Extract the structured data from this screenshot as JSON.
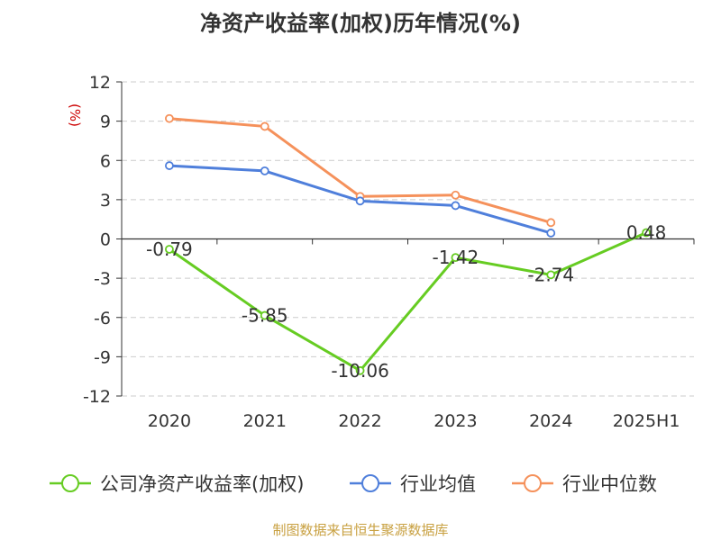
{
  "chart_data": {
    "type": "line",
    "title": "净资产收益率(加权)历年情况(%)",
    "ylabel": "(%)",
    "categories": [
      "2020",
      "2021",
      "2022",
      "2023",
      "2024",
      "2025H1"
    ],
    "ylim": [
      -12,
      12
    ],
    "yticks": [
      12,
      9,
      6,
      3,
      0,
      -3,
      -6,
      -9,
      -12
    ],
    "grid": true,
    "legend_position": "bottom",
    "series": [
      {
        "name": "公司净资产收益率(加权)",
        "color": "#66cc22",
        "values": [
          -0.79,
          -5.85,
          -10.06,
          -1.42,
          -2.74,
          0.48
        ],
        "labels": [
          "-0.79",
          "-5.85",
          "-10.06",
          "-1.42",
          "-2.74",
          "0.48"
        ]
      },
      {
        "name": "行业均值",
        "color": "#4f7fdb",
        "values": [
          5.6,
          5.2,
          2.9,
          2.55,
          0.45,
          null
        ]
      },
      {
        "name": "行业中位数",
        "color": "#f5915b",
        "values": [
          9.2,
          8.6,
          3.25,
          3.35,
          1.25,
          null
        ]
      }
    ]
  },
  "source": "制图数据来自恒生聚源数据库"
}
